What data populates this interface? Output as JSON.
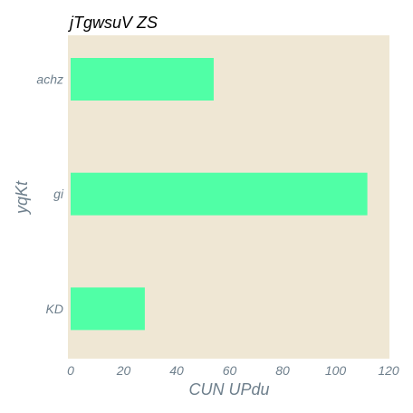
{
  "chart_data": {
    "type": "bar",
    "orientation": "horizontal",
    "title": "jTgwsuV ZS",
    "xlabel": "CUN  UPdu",
    "ylabel": "yqKt",
    "categories": [
      "achz",
      "gi",
      "KD"
    ],
    "values": [
      54,
      112,
      28
    ],
    "xlim": [
      0,
      120
    ],
    "xticks": [
      0,
      20,
      40,
      60,
      80,
      100,
      120
    ],
    "grid": false,
    "legend": "none",
    "colors": {
      "bar": "#50ffa6",
      "plot_background": "#efe7d4",
      "tick_text": "#6e7f8c",
      "title_text": "#000000"
    }
  }
}
